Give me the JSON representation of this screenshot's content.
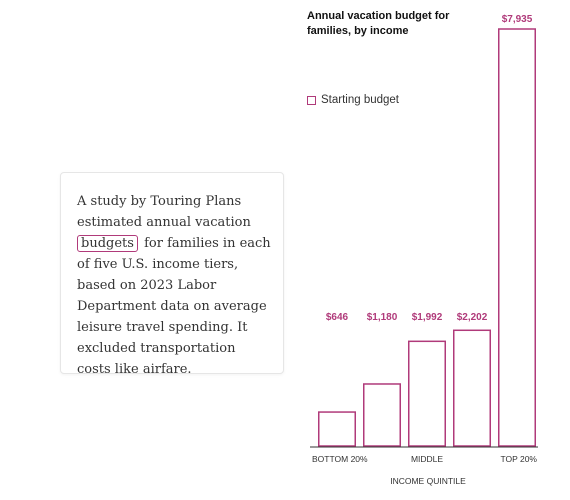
{
  "note": {
    "before": "A study by Touring Plans estimated annual vacation",
    "link": "budgets",
    "after": "for families in each of five U.S. income tiers, based on 2023 Labor Department data on average leisure travel spending. It excluded transportation costs like airfare."
  },
  "chart_data": {
    "type": "bar",
    "title": "Annual vacation budget for families, by income",
    "xlabel": "INCOME QUINTILE",
    "ylabel": "",
    "categories": [
      "BOTTOM 20%",
      "",
      "MIDDLE",
      "",
      "TOP 20%"
    ],
    "series": [
      {
        "name": "Starting budget",
        "values": [
          646,
          1180,
          1992,
          2202,
          7935
        ]
      }
    ],
    "value_labels": [
      "$646",
      "$1,180",
      "$1,992",
      "$2,202",
      "$7,935"
    ],
    "ylim": [
      0,
      7935
    ],
    "grid": false,
    "legend": "top-left",
    "colors": {
      "bar_stroke": "#b03a7a",
      "bar_fill": "#ffffff",
      "axis": "#333333"
    }
  }
}
